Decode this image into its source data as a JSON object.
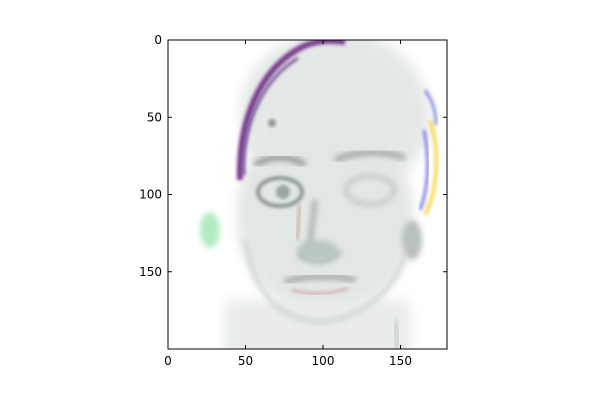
{
  "chart_data": {
    "type": "image",
    "image_description": "faded high-contrast saliency-style rendering of a man's face",
    "xlim": [
      0,
      180
    ],
    "ylim": [
      200,
      0
    ],
    "x_ticks": [
      0,
      50,
      100,
      150
    ],
    "y_ticks": [
      0,
      50,
      100,
      150
    ],
    "x_tick_labels": [
      "0",
      "50",
      "100",
      "150"
    ],
    "y_tick_labels": [
      "0",
      "50",
      "100",
      "150"
    ],
    "title": "",
    "xlabel": "",
    "ylabel": "",
    "grid": false
  }
}
